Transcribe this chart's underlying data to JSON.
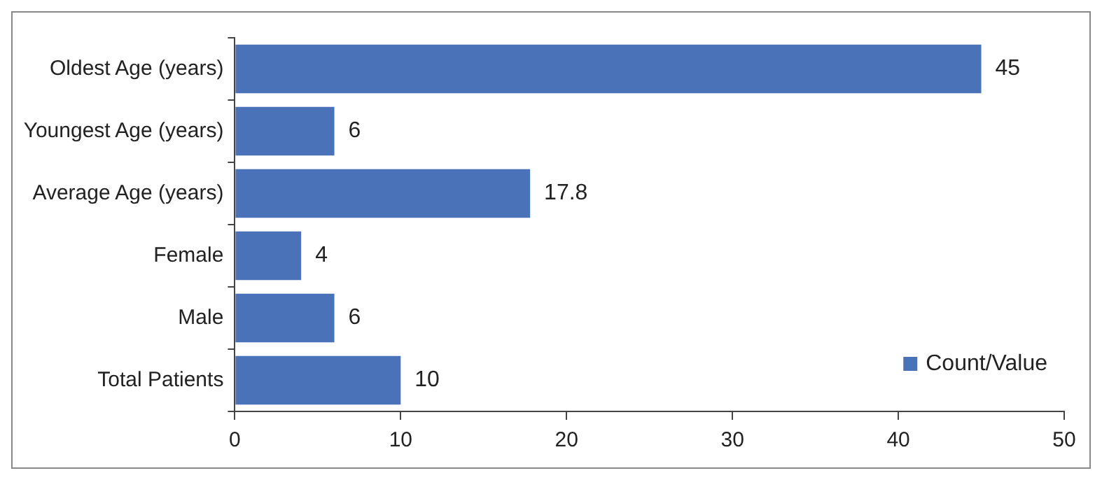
{
  "chart_data": {
    "type": "bar",
    "orientation": "horizontal",
    "categories": [
      "Oldest Age (years)",
      "Youngest Age (years)",
      "Average Age (years)",
      "Female",
      "Male",
      "Total Patients"
    ],
    "series": [
      {
        "name": "Count/Value",
        "color": "#4a72b8",
        "values": [
          45,
          6,
          17.8,
          4,
          6,
          10
        ]
      }
    ],
    "xlim": [
      0,
      50
    ],
    "xticks": [
      0,
      10,
      20,
      30,
      40,
      50
    ],
    "data_labels": true,
    "legend": "bottom right",
    "grid": false
  }
}
